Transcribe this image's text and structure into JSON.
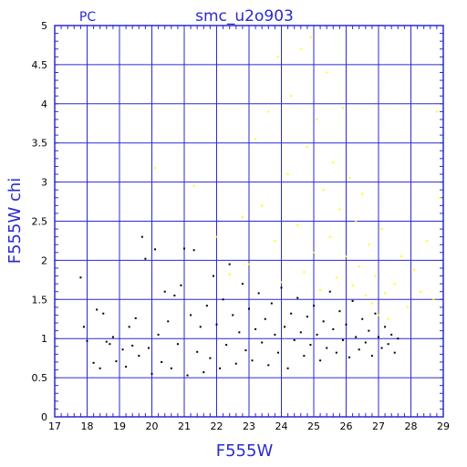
{
  "chart_data": {
    "type": "scatter",
    "corner_label": "PC",
    "title": "smc_u2o903",
    "xlabel": "F555W",
    "ylabel": "F555W chi",
    "xlim": [
      17,
      29
    ],
    "ylim": [
      0,
      5
    ],
    "xticks": [
      "17",
      "18",
      "19",
      "20",
      "21",
      "22",
      "23",
      "24",
      "25",
      "26",
      "27",
      "28",
      "29"
    ],
    "yticks": [
      "0",
      "0.5",
      "1",
      "1.5",
      "2",
      "2.5",
      "3",
      "3.5",
      "4",
      "4.5",
      "5"
    ],
    "grid": true,
    "colors": {
      "frame": "#2a2ad0",
      "grid": "#2a2ad0",
      "series_black": "#000000",
      "series_yellow": "#ffff00",
      "text_blue": "#2a2ad0"
    },
    "series": [
      {
        "color": "#000000",
        "points": [
          [
            17.8,
            1.78
          ],
          [
            17.9,
            1.15
          ],
          [
            18.0,
            0.97
          ],
          [
            18.2,
            0.69
          ],
          [
            18.3,
            1.37
          ],
          [
            18.4,
            0.62
          ],
          [
            18.5,
            1.32
          ],
          [
            18.6,
            0.96
          ],
          [
            18.7,
            0.93
          ],
          [
            18.8,
            1.02
          ],
          [
            18.9,
            0.71
          ],
          [
            19.1,
            0.86
          ],
          [
            19.2,
            0.64
          ],
          [
            19.3,
            1.15
          ],
          [
            19.4,
            0.91
          ],
          [
            19.5,
            1.26
          ],
          [
            19.6,
            0.78
          ],
          [
            19.7,
            2.3
          ],
          [
            19.8,
            2.02
          ],
          [
            19.9,
            0.88
          ],
          [
            20.0,
            0.55
          ],
          [
            20.1,
            2.14
          ],
          [
            20.2,
            1.05
          ],
          [
            20.3,
            0.7
          ],
          [
            20.4,
            1.6
          ],
          [
            20.5,
            1.22
          ],
          [
            20.6,
            0.62
          ],
          [
            20.7,
            1.55
          ],
          [
            20.8,
            0.93
          ],
          [
            20.9,
            1.68
          ],
          [
            21.0,
            2.15
          ],
          [
            21.1,
            0.53
          ],
          [
            21.2,
            1.3
          ],
          [
            21.3,
            2.13
          ],
          [
            21.4,
            0.83
          ],
          [
            21.5,
            1.15
          ],
          [
            21.6,
            0.57
          ],
          [
            21.7,
            1.42
          ],
          [
            21.8,
            0.75
          ],
          [
            21.9,
            1.8
          ],
          [
            22.0,
            1.18
          ],
          [
            22.1,
            0.62
          ],
          [
            22.2,
            1.5
          ],
          [
            22.3,
            0.92
          ],
          [
            22.4,
            1.95
          ],
          [
            22.5,
            1.3
          ],
          [
            22.6,
            0.68
          ],
          [
            22.7,
            1.08
          ],
          [
            22.8,
            1.7
          ],
          [
            22.9,
            0.85
          ],
          [
            23.0,
            1.38
          ],
          [
            23.1,
            0.72
          ],
          [
            23.2,
            1.12
          ],
          [
            23.3,
            1.58
          ],
          [
            23.4,
            0.95
          ],
          [
            23.5,
            1.25
          ],
          [
            23.6,
            0.66
          ],
          [
            23.7,
            1.45
          ],
          [
            23.8,
            1.05
          ],
          [
            23.9,
            0.82
          ],
          [
            24.0,
            1.65
          ],
          [
            24.1,
            1.15
          ],
          [
            24.2,
            0.62
          ],
          [
            24.3,
            1.32
          ],
          [
            24.4,
            0.98
          ],
          [
            24.5,
            1.52
          ],
          [
            24.6,
            1.08
          ],
          [
            24.7,
            0.78
          ],
          [
            24.8,
            1.28
          ],
          [
            24.9,
            0.92
          ],
          [
            25.0,
            1.42
          ],
          [
            25.1,
            1.05
          ],
          [
            25.2,
            0.72
          ],
          [
            25.3,
            1.22
          ],
          [
            25.4,
            0.88
          ],
          [
            25.5,
            1.6
          ],
          [
            25.6,
            1.12
          ],
          [
            25.7,
            0.82
          ],
          [
            25.8,
            1.35
          ],
          [
            25.9,
            0.98
          ],
          [
            26.0,
            1.18
          ],
          [
            26.1,
            0.76
          ],
          [
            26.2,
            1.48
          ],
          [
            26.3,
            1.02
          ],
          [
            26.4,
            0.86
          ],
          [
            26.5,
            1.25
          ],
          [
            26.6,
            0.95
          ],
          [
            26.7,
            1.1
          ],
          [
            26.8,
            0.78
          ],
          [
            26.9,
            1.32
          ],
          [
            27.0,
            1.02
          ],
          [
            27.1,
            0.88
          ],
          [
            27.2,
            1.15
          ],
          [
            27.3,
            0.93
          ],
          [
            27.4,
            1.05
          ],
          [
            27.5,
            0.82
          ],
          [
            27.6,
            1.0
          ]
        ]
      },
      {
        "color": "#ffff00",
        "points": [
          [
            20.1,
            3.18
          ],
          [
            21.3,
            2.95
          ],
          [
            22.0,
            2.3
          ],
          [
            22.4,
            1.82
          ],
          [
            22.8,
            2.55
          ],
          [
            23.0,
            1.95
          ],
          [
            23.2,
            3.55
          ],
          [
            23.4,
            2.7
          ],
          [
            23.6,
            3.9
          ],
          [
            23.8,
            2.25
          ],
          [
            23.9,
            4.6
          ],
          [
            24.0,
            1.72
          ],
          [
            24.2,
            3.1
          ],
          [
            24.3,
            4.1
          ],
          [
            24.5,
            2.45
          ],
          [
            24.6,
            4.7
          ],
          [
            24.7,
            1.85
          ],
          [
            24.8,
            3.45
          ],
          [
            24.9,
            4.85
          ],
          [
            25.0,
            2.1
          ],
          [
            25.1,
            3.8
          ],
          [
            25.2,
            1.62
          ],
          [
            25.3,
            2.9
          ],
          [
            25.4,
            4.4
          ],
          [
            25.5,
            2.3
          ],
          [
            25.6,
            3.25
          ],
          [
            25.7,
            1.78
          ],
          [
            25.8,
            2.65
          ],
          [
            25.9,
            3.95
          ],
          [
            26.0,
            2.05
          ],
          [
            26.1,
            3.05
          ],
          [
            26.2,
            1.68
          ],
          [
            26.3,
            2.5
          ],
          [
            26.4,
            1.92
          ],
          [
            26.5,
            2.85
          ],
          [
            26.6,
            1.55
          ],
          [
            26.7,
            2.2
          ],
          [
            26.8,
            1.45
          ],
          [
            26.9,
            1.8
          ],
          [
            27.0,
            1.3
          ],
          [
            27.1,
            2.4
          ],
          [
            27.2,
            1.58
          ],
          [
            27.3,
            1.25
          ],
          [
            27.5,
            1.7
          ],
          [
            27.7,
            2.05
          ],
          [
            27.9,
            1.4
          ],
          [
            28.1,
            1.88
          ],
          [
            28.3,
            1.6
          ],
          [
            28.5,
            2.25
          ],
          [
            28.7,
            1.5
          ],
          [
            28.8,
            3.9
          ],
          [
            28.9,
            2.8
          ]
        ]
      }
    ]
  }
}
